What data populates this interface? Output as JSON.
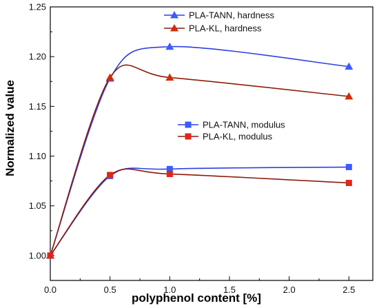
{
  "chart_data": {
    "type": "line",
    "xlabel": "polyphenol content [%]",
    "ylabel": "Normalized value",
    "xlim": [
      0.0,
      2.7
    ],
    "ylim": [
      0.975,
      1.25
    ],
    "x_ticks": [
      0.0,
      0.5,
      1.0,
      1.5,
      2.0,
      2.5
    ],
    "x_tick_labels": [
      "0.0",
      "0.5",
      "1.0",
      "1.5",
      "2.0",
      "2.5"
    ],
    "y_ticks": [
      1.0,
      1.05,
      1.1,
      1.15,
      1.2,
      1.25
    ],
    "y_tick_labels": [
      "1.00",
      "1.05",
      "1.10",
      "1.15",
      "1.20",
      "1.25"
    ],
    "grid": false,
    "legend_groups": [
      {
        "placement": "upper-center",
        "series": [
          "PLA-TANN, hardness",
          "PLA-KL, hardness"
        ]
      },
      {
        "placement": "center-right",
        "series": [
          "PLA-TANN, modulus",
          "PLA-KL, modulus"
        ]
      }
    ],
    "series": [
      {
        "name": "PLA-TANN, hardness",
        "marker": "triangle",
        "color": "#2e3fe0",
        "marker_color": "#3a5bff",
        "x": [
          0.0,
          0.5,
          1.0,
          2.5
        ],
        "y": [
          1.0,
          1.178,
          1.21,
          1.19
        ]
      },
      {
        "name": "PLA-KL, hardness",
        "marker": "triangle",
        "color": "#8b1a0a",
        "marker_color": "#d42a0a",
        "x": [
          0.0,
          0.5,
          1.0,
          2.5
        ],
        "y": [
          1.0,
          1.179,
          1.179,
          1.16
        ]
      },
      {
        "name": "PLA-TANN, modulus",
        "marker": "square",
        "color": "#2e3fe0",
        "marker_color": "#3a5bff",
        "x": [
          0.0,
          0.5,
          1.0,
          2.5
        ],
        "y": [
          1.0,
          1.08,
          1.087,
          1.089
        ]
      },
      {
        "name": "PLA-KL, modulus",
        "marker": "square",
        "color": "#8b1a0a",
        "marker_color": "#e0261a",
        "x": [
          0.0,
          0.5,
          1.0,
          2.5
        ],
        "y": [
          1.0,
          1.081,
          1.082,
          1.073
        ]
      }
    ]
  }
}
